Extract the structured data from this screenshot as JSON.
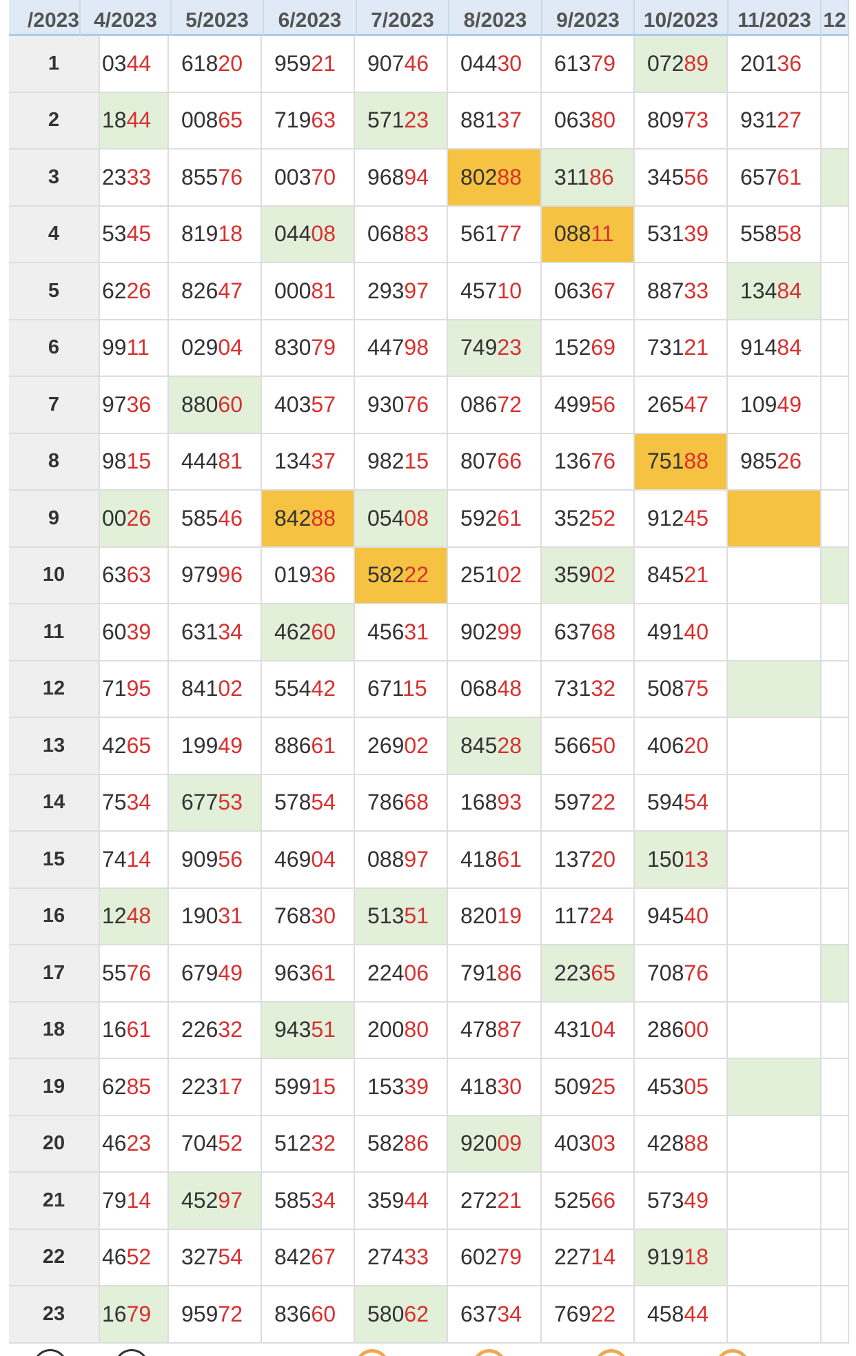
{
  "header": {
    "columns": [
      "/2023",
      "4/2023",
      "5/2023",
      "6/2023",
      "7/2023",
      "8/2023",
      "9/2023",
      "10/2023",
      "11/2023",
      "12"
    ]
  },
  "table": {
    "rows": [
      {
        "day": "1",
        "cells": [
          "0344",
          "61820",
          "95921",
          "90746",
          "04430",
          "61379",
          {
            "text": "07289",
            "fill": "#e2efd9"
          },
          "20136",
          null
        ]
      },
      {
        "day": "2",
        "cells": [
          {
            "text": "1844",
            "fill": "#e2efd9"
          },
          "00865",
          "71963",
          {
            "text": "57123",
            "fill": "#e2efd9"
          },
          "88137",
          "06380",
          "80973",
          "93127",
          null
        ]
      },
      {
        "day": "3",
        "cells": [
          "2333",
          "85576",
          "00370",
          "96894",
          {
            "text": "80288",
            "fill": "#f5c242"
          },
          {
            "text": "31186",
            "fill": "#e2efd9"
          },
          "34556",
          "65761",
          {
            "fill": "#e2efd9"
          }
        ]
      },
      {
        "day": "4",
        "cells": [
          "5345",
          "81918",
          {
            "text": "04408",
            "fill": "#e2efd9"
          },
          "06883",
          "56177",
          {
            "text": "08811",
            "fill": "#f5c242"
          },
          "53139",
          "55858",
          null
        ]
      },
      {
        "day": "5",
        "cells": [
          "6226",
          "82647",
          "00081",
          "29397",
          "45710",
          "06367",
          "88733",
          {
            "text": "13484",
            "fill": "#e2efd9"
          },
          null
        ]
      },
      {
        "day": "6",
        "cells": [
          "9911",
          "02904",
          "83079",
          "44798",
          {
            "text": "74923",
            "fill": "#e2efd9"
          },
          "15269",
          "73121",
          "91484",
          null
        ]
      },
      {
        "day": "7",
        "cells": [
          "9736",
          {
            "text": "88060",
            "fill": "#e2efd9"
          },
          "40357",
          "93076",
          "08672",
          "49956",
          "26547",
          "10949",
          null
        ]
      },
      {
        "day": "8",
        "cells": [
          "9815",
          "44481",
          "13437",
          "98215",
          "80766",
          "13676",
          {
            "text": "75188",
            "fill": "#f5c242"
          },
          "98526",
          null
        ]
      },
      {
        "day": "9",
        "cells": [
          {
            "text": "0026",
            "fill": "#e2efd9"
          },
          "58546",
          {
            "text": "84288",
            "fill": "#f5c242"
          },
          {
            "text": "05408",
            "fill": "#e2efd9"
          },
          "59261",
          "35252",
          "91245",
          {
            "fill": "#f5c242"
          },
          null
        ]
      },
      {
        "day": "10",
        "cells": [
          "6363",
          "97996",
          "01936",
          {
            "text": "58222",
            "fill": "#f5c242"
          },
          "25102",
          {
            "text": "35902",
            "fill": "#e2efd9"
          },
          "84521",
          null,
          {
            "fill": "#e2efd9"
          }
        ]
      },
      {
        "day": "11",
        "cells": [
          "6039",
          "63134",
          {
            "text": "46260",
            "fill": "#e2efd9"
          },
          "45631",
          "90299",
          "63768",
          "49140",
          null,
          null
        ]
      },
      {
        "day": "12",
        "cells": [
          "7195",
          "84102",
          "55442",
          "67115",
          "06848",
          "73132",
          "50875",
          {
            "fill": "#e2efd9"
          },
          null
        ]
      },
      {
        "day": "13",
        "cells": [
          "4265",
          "19949",
          "88661",
          "26902",
          {
            "text": "84528",
            "fill": "#e2efd9"
          },
          "56650",
          "40620",
          null,
          null
        ]
      },
      {
        "day": "14",
        "cells": [
          "7534",
          {
            "text": "67753",
            "fill": "#e2efd9"
          },
          "57854",
          "78668",
          "16893",
          "59722",
          "59454",
          null,
          null
        ]
      },
      {
        "day": "15",
        "cells": [
          "7414",
          "90956",
          "46904",
          "08897",
          "41861",
          "13720",
          {
            "text": "15013",
            "fill": "#e2efd9"
          },
          null,
          null
        ]
      },
      {
        "day": "16",
        "cells": [
          {
            "text": "1248",
            "fill": "#e2efd9"
          },
          "19031",
          "76830",
          {
            "text": "51351",
            "fill": "#e2efd9"
          },
          "82019",
          "11724",
          "94540",
          null,
          null
        ]
      },
      {
        "day": "17",
        "cells": [
          "5576",
          "67949",
          "96361",
          "22406",
          "79186",
          {
            "text": "22365",
            "fill": "#e2efd9"
          },
          "70876",
          null,
          {
            "fill": "#e2efd9"
          }
        ]
      },
      {
        "day": "18",
        "cells": [
          "1661",
          "22632",
          {
            "text": "94351",
            "fill": "#e2efd9"
          },
          "20080",
          "47887",
          "43104",
          "28600",
          null,
          null
        ]
      },
      {
        "day": "19",
        "cells": [
          "6285",
          "22317",
          "59915",
          "15339",
          "41830",
          "50925",
          "45305",
          {
            "fill": "#e2efd9"
          },
          null
        ]
      },
      {
        "day": "20",
        "cells": [
          "4623",
          "70452",
          "51232",
          "58286",
          {
            "text": "92009",
            "fill": "#e2efd9"
          },
          "40303",
          "42888",
          null,
          null
        ]
      },
      {
        "day": "21",
        "cells": [
          "7914",
          {
            "text": "45297",
            "fill": "#e2efd9"
          },
          "58534",
          "35944",
          "27221",
          "52566",
          "57349",
          null,
          null
        ]
      },
      {
        "day": "22",
        "cells": [
          "4652",
          "32754",
          "84267",
          "27433",
          "60279",
          "22714",
          {
            "text": "91918",
            "fill": "#e2efd9"
          },
          null,
          null
        ]
      },
      {
        "day": "23",
        "cells": [
          {
            "text": "1679",
            "fill": "#e2efd9"
          },
          "95972",
          "83660",
          {
            "text": "58062",
            "fill": "#e2efd9"
          },
          "63734",
          "76922",
          "45844",
          null,
          null
        ]
      }
    ]
  }
}
